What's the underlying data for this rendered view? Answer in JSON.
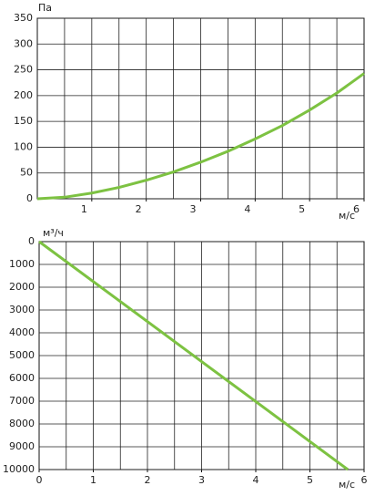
{
  "chart_data": [
    {
      "type": "line",
      "y_label": "Па",
      "x_label": "м/с",
      "x": [
        0,
        0.5,
        1,
        1.5,
        2,
        2.5,
        3,
        3.5,
        4,
        4.5,
        5,
        5.5,
        6
      ],
      "series": [
        {
          "color": "#7dc242",
          "values": [
            0,
            3,
            11,
            22,
            36,
            52,
            71,
            92,
            116,
            142,
            172,
            205,
            243
          ]
        }
      ],
      "xlim": [
        0,
        6
      ],
      "ylim": [
        0,
        350
      ],
      "xticks": [
        1,
        2,
        3,
        4,
        5,
        6
      ],
      "yticks": [
        0,
        50,
        100,
        150,
        200,
        250,
        300,
        350
      ],
      "x_gridlines": [
        0.5,
        1,
        1.5,
        2,
        2.5,
        3,
        3.5,
        4,
        4.5,
        5,
        5.5
      ],
      "grid": true
    },
    {
      "type": "line",
      "y_label": "м³/ч",
      "x_label": "м/с",
      "x": [
        0,
        5.7
      ],
      "series": [
        {
          "color": "#7dc242",
          "values": [
            0,
            10000
          ]
        }
      ],
      "xlim": [
        0,
        6
      ],
      "ylim": [
        10000,
        0
      ],
      "xticks": [
        0,
        1,
        2,
        3,
        4,
        5,
        6
      ],
      "yticks": [
        0,
        1000,
        2000,
        3000,
        4000,
        5000,
        6000,
        7000,
        8000,
        9000,
        10000
      ],
      "x_gridlines": [
        0.5,
        1,
        1.5,
        2,
        2.5,
        3,
        3.5,
        4,
        4.5,
        5,
        5.5
      ],
      "grid": true
    }
  ]
}
